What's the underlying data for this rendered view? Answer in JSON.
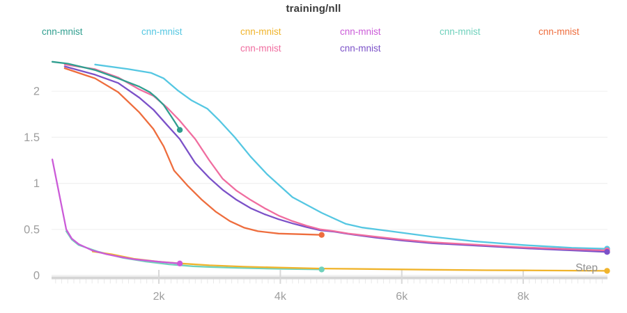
{
  "chart_data": {
    "type": "line",
    "title": "training/nll",
    "xlabel": "Step",
    "ylabel": "",
    "legend_position": "top",
    "grid": true,
    "x_axis": {
      "tick_labels": [
        "2k",
        "4k",
        "6k",
        "8k"
      ],
      "tick_values": [
        2000,
        4000,
        6000,
        8000
      ],
      "minor_tick_interval": 100,
      "range": [
        0,
        9700
      ]
    },
    "y_axis": {
      "tick_labels": [
        "0",
        "0.5",
        "1",
        "1.5",
        "2"
      ],
      "tick_values": [
        0,
        0.5,
        1,
        1.5,
        2
      ],
      "range": [
        0,
        2.45
      ]
    },
    "series": [
      {
        "name": "cnn-mnist",
        "color": "#2f9e8f",
        "end_step": 2345,
        "points": [
          [
            245,
            2.32
          ],
          [
            500,
            2.3
          ],
          [
            950,
            2.23
          ],
          [
            1330,
            2.14
          ],
          [
            1680,
            2.05
          ],
          [
            1850,
            1.99
          ],
          [
            1960,
            1.93
          ],
          [
            2080,
            1.85
          ],
          [
            2200,
            1.73
          ],
          [
            2280,
            1.65
          ],
          [
            2345,
            1.58
          ]
        ]
      },
      {
        "name": "cnn-mnist",
        "color": "#55c7e2",
        "end_step": 9380,
        "points": [
          [
            950,
            2.29
          ],
          [
            1500,
            2.24
          ],
          [
            1870,
            2.2
          ],
          [
            2080,
            2.14
          ],
          [
            2310,
            2.01
          ],
          [
            2540,
            1.9
          ],
          [
            2800,
            1.81
          ],
          [
            3000,
            1.68
          ],
          [
            3250,
            1.5
          ],
          [
            3510,
            1.29
          ],
          [
            3780,
            1.1
          ],
          [
            4200,
            0.85
          ],
          [
            4680,
            0.68
          ],
          [
            5080,
            0.56
          ],
          [
            5350,
            0.52
          ],
          [
            5810,
            0.48
          ],
          [
            6500,
            0.42
          ],
          [
            7200,
            0.37
          ],
          [
            8000,
            0.33
          ],
          [
            8800,
            0.3
          ],
          [
            9380,
            0.29
          ]
        ]
      },
      {
        "name": "cnn-mnist",
        "color": "#f0b42c",
        "end_step": 9380,
        "points": [
          [
            910,
            0.26
          ],
          [
            1220,
            0.23
          ],
          [
            1600,
            0.18
          ],
          [
            1990,
            0.15
          ],
          [
            2370,
            0.13
          ],
          [
            2830,
            0.11
          ],
          [
            3400,
            0.095
          ],
          [
            3970,
            0.085
          ],
          [
            4680,
            0.075
          ],
          [
            5350,
            0.07
          ],
          [
            6500,
            0.062
          ],
          [
            7400,
            0.057
          ],
          [
            8000,
            0.055
          ],
          [
            9380,
            0.05
          ]
        ]
      },
      {
        "name": "cnn-mnist",
        "color": "#cb5bd8",
        "end_step": 2345,
        "points": [
          [
            245,
            1.26
          ],
          [
            475,
            0.5
          ],
          [
            565,
            0.4
          ],
          [
            680,
            0.34
          ],
          [
            910,
            0.27
          ],
          [
            1140,
            0.23
          ],
          [
            1370,
            0.2
          ],
          [
            1600,
            0.175
          ],
          [
            1830,
            0.16
          ],
          [
            2060,
            0.145
          ],
          [
            2345,
            0.13
          ]
        ]
      },
      {
        "name": "cnn-mnist",
        "color": "#6fd1bc",
        "end_step": 4680,
        "points": [
          [
            475,
            0.48
          ],
          [
            565,
            0.39
          ],
          [
            680,
            0.33
          ],
          [
            990,
            0.26
          ],
          [
            1410,
            0.19
          ],
          [
            1790,
            0.15
          ],
          [
            2170,
            0.12
          ],
          [
            2560,
            0.1
          ],
          [
            2830,
            0.092
          ],
          [
            3280,
            0.082
          ],
          [
            3970,
            0.072
          ],
          [
            4680,
            0.065
          ]
        ]
      },
      {
        "name": "cnn-mnist",
        "color": "#ee6d3d",
        "end_step": 4680,
        "points": [
          [
            450,
            2.25
          ],
          [
            950,
            2.14
          ],
          [
            1330,
            1.99
          ],
          [
            1680,
            1.77
          ],
          [
            1910,
            1.59
          ],
          [
            2080,
            1.4
          ],
          [
            2250,
            1.14
          ],
          [
            2480,
            0.97
          ],
          [
            2710,
            0.82
          ],
          [
            2940,
            0.69
          ],
          [
            3170,
            0.59
          ],
          [
            3400,
            0.52
          ],
          [
            3630,
            0.48
          ],
          [
            3970,
            0.455
          ],
          [
            4320,
            0.448
          ],
          [
            4680,
            0.44
          ]
        ]
      },
      {
        "name": "cnn-mnist",
        "color": "#f06d9f",
        "end_step": 9380,
        "points": [
          [
            450,
            2.29
          ],
          [
            950,
            2.24
          ],
          [
            1330,
            2.15
          ],
          [
            1680,
            2.02
          ],
          [
            1910,
            1.95
          ],
          [
            2140,
            1.82
          ],
          [
            2345,
            1.68
          ],
          [
            2600,
            1.48
          ],
          [
            2830,
            1.25
          ],
          [
            3050,
            1.05
          ],
          [
            3280,
            0.92
          ],
          [
            3510,
            0.82
          ],
          [
            3740,
            0.73
          ],
          [
            3970,
            0.65
          ],
          [
            4200,
            0.59
          ],
          [
            4430,
            0.54
          ],
          [
            4660,
            0.5
          ],
          [
            4890,
            0.48
          ],
          [
            5120,
            0.455
          ],
          [
            5580,
            0.42
          ],
          [
            6000,
            0.39
          ],
          [
            6500,
            0.36
          ],
          [
            7200,
            0.335
          ],
          [
            8000,
            0.305
          ],
          [
            8800,
            0.285
          ],
          [
            9380,
            0.272
          ]
        ]
      },
      {
        "name": "cnn-mnist",
        "color": "#7b51c8",
        "end_step": 9380,
        "points": [
          [
            450,
            2.27
          ],
          [
            950,
            2.18
          ],
          [
            1330,
            2.09
          ],
          [
            1680,
            1.93
          ],
          [
            1910,
            1.8
          ],
          [
            2140,
            1.63
          ],
          [
            2345,
            1.48
          ],
          [
            2600,
            1.22
          ],
          [
            2830,
            1.06
          ],
          [
            3050,
            0.93
          ],
          [
            3280,
            0.82
          ],
          [
            3510,
            0.73
          ],
          [
            3740,
            0.665
          ],
          [
            3970,
            0.61
          ],
          [
            4200,
            0.565
          ],
          [
            4430,
            0.525
          ],
          [
            4660,
            0.49
          ],
          [
            4890,
            0.475
          ],
          [
            5120,
            0.45
          ],
          [
            5580,
            0.41
          ],
          [
            6000,
            0.38
          ],
          [
            6500,
            0.35
          ],
          [
            7200,
            0.325
          ],
          [
            8000,
            0.295
          ],
          [
            8800,
            0.272
          ],
          [
            9380,
            0.255
          ]
        ]
      }
    ],
    "colors": {
      "grid_line": "#f0f0f0",
      "zero_grid_line": "#ebebeb",
      "axis_band": "#d5d5d5",
      "major_tick": "#d8d8d8",
      "minor_tick": "#e8e8e8",
      "tick_label": "#9e9e9e",
      "step_label": "#8f8f8f",
      "title": "#3a3a3a"
    }
  }
}
